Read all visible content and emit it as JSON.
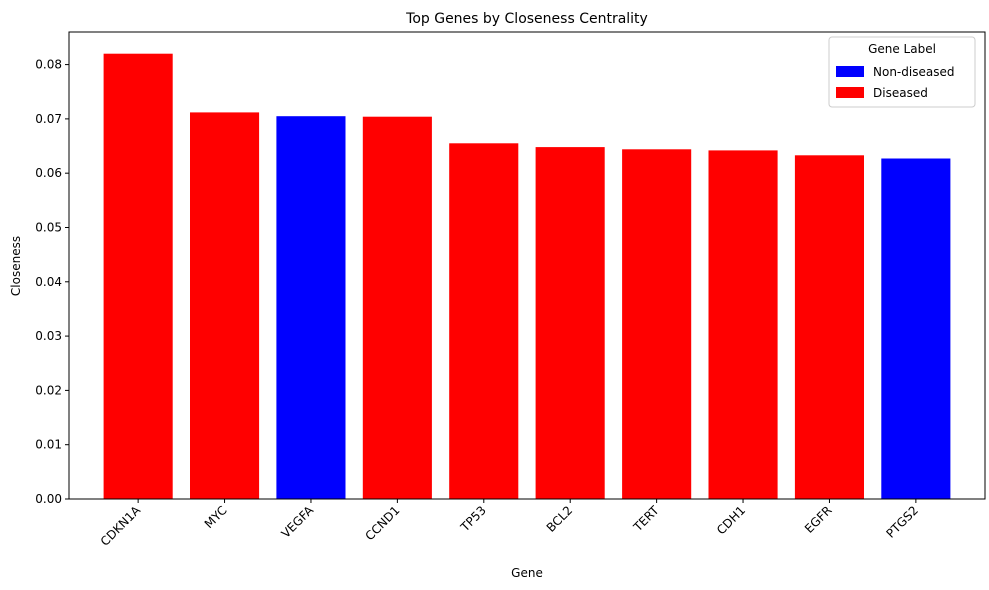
{
  "chart_data": {
    "type": "bar",
    "title": "Top Genes by Closeness Centrality",
    "xlabel": "Gene",
    "ylabel": "Closeness",
    "categories": [
      "CDKN1A",
      "MYC",
      "VEGFA",
      "CCND1",
      "TP53",
      "BCL2",
      "TERT",
      "CDH1",
      "EGFR",
      "PTGS2"
    ],
    "values": [
      0.082,
      0.0712,
      0.0705,
      0.0704,
      0.0655,
      0.0648,
      0.0644,
      0.0642,
      0.0633,
      0.0627
    ],
    "labels": [
      "Diseased",
      "Diseased",
      "Non-diseased",
      "Diseased",
      "Diseased",
      "Diseased",
      "Diseased",
      "Diseased",
      "Diseased",
      "Non-diseased"
    ],
    "ylim": [
      0,
      0.086
    ],
    "yticks": [
      "0.00",
      "0.01",
      "0.02",
      "0.03",
      "0.04",
      "0.05",
      "0.06",
      "0.07",
      "0.08"
    ],
    "grid": false,
    "legend": {
      "title": "Gene Label",
      "placement": "top-right",
      "entries": [
        {
          "name": "Non-diseased",
          "color": "#0000ff"
        },
        {
          "name": "Diseased",
          "color": "#ff0000"
        }
      ]
    }
  }
}
